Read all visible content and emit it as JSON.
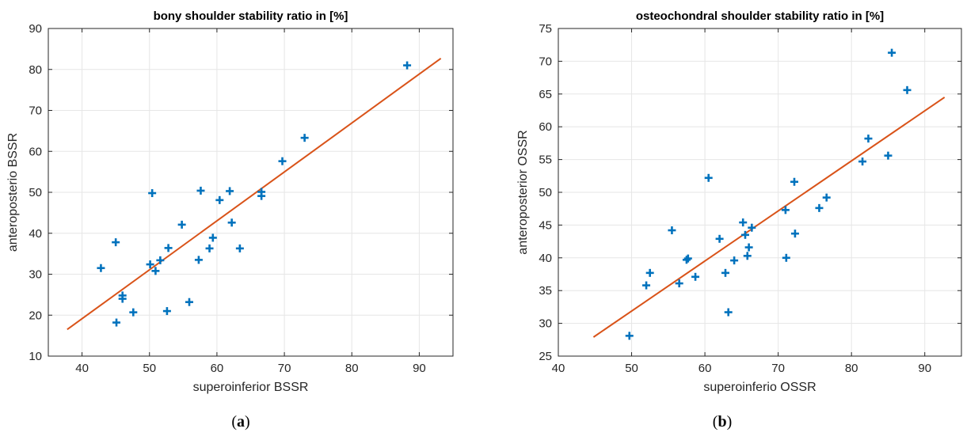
{
  "panels": [
    {
      "caption_prefix": "(",
      "caption_letter": "a",
      "caption_suffix": ")"
    },
    {
      "caption_prefix": "(",
      "caption_letter": "b",
      "caption_suffix": ")"
    }
  ],
  "colors": {
    "marker": "#0072BD",
    "fit_line": "#D95319",
    "grid": "#e6e6e6",
    "axis": "#262626"
  },
  "chart_data": [
    {
      "type": "scatter",
      "title": "bony shoulder stability ratio in [%]",
      "xlabel": "superoinferior BSSR",
      "ylabel": "anteroposterio BSSR",
      "xlim": [
        35,
        95
      ],
      "ylim": [
        10,
        90
      ],
      "xticks": [
        40,
        50,
        60,
        70,
        80,
        90
      ],
      "yticks": [
        10,
        20,
        30,
        40,
        50,
        60,
        70,
        80,
        90
      ],
      "grid": true,
      "marker": "+",
      "points": [
        [
          42.8,
          31.5
        ],
        [
          45.0,
          37.8
        ],
        [
          45.1,
          18.2
        ],
        [
          46.0,
          24.8
        ],
        [
          46.0,
          24.0
        ],
        [
          47.6,
          20.7
        ],
        [
          50.1,
          32.4
        ],
        [
          50.4,
          49.8
        ],
        [
          50.9,
          30.8
        ],
        [
          51.6,
          33.4
        ],
        [
          52.6,
          21.0
        ],
        [
          52.8,
          36.4
        ],
        [
          54.8,
          42.1
        ],
        [
          55.9,
          23.2
        ],
        [
          57.3,
          33.5
        ],
        [
          57.6,
          50.4
        ],
        [
          58.9,
          36.3
        ],
        [
          59.4,
          38.9
        ],
        [
          60.4,
          48.1
        ],
        [
          61.9,
          50.3
        ],
        [
          62.2,
          42.6
        ],
        [
          63.4,
          36.3
        ],
        [
          66.6,
          49.1
        ],
        [
          66.6,
          50.1
        ],
        [
          69.7,
          57.6
        ],
        [
          73.0,
          63.3
        ],
        [
          88.2,
          81.0
        ]
      ],
      "fit_line": {
        "x": [
          37.8,
          93.2
        ],
        "y": [
          16.5,
          82.7
        ]
      }
    },
    {
      "type": "scatter",
      "title": "osteochondral shoulder stability ratio in [%]",
      "xlabel": "superoinferio OSSR",
      "ylabel": "anteroposterior OSSR",
      "xlim": [
        40,
        95
      ],
      "ylim": [
        25,
        75
      ],
      "xticks": [
        40,
        50,
        60,
        70,
        80,
        90
      ],
      "yticks": [
        25,
        30,
        35,
        40,
        45,
        50,
        55,
        60,
        65,
        70,
        75
      ],
      "grid": true,
      "marker": "+",
      "points": [
        [
          49.7,
          28.1
        ],
        [
          52.0,
          35.8
        ],
        [
          52.5,
          37.7
        ],
        [
          55.5,
          44.2
        ],
        [
          56.5,
          36.1
        ],
        [
          57.5,
          39.7
        ],
        [
          57.7,
          39.9
        ],
        [
          58.7,
          37.1
        ],
        [
          60.5,
          52.2
        ],
        [
          62.0,
          42.9
        ],
        [
          62.8,
          37.7
        ],
        [
          63.2,
          31.7
        ],
        [
          64.0,
          39.6
        ],
        [
          65.2,
          45.4
        ],
        [
          65.5,
          43.5
        ],
        [
          65.8,
          40.3
        ],
        [
          66.0,
          41.6
        ],
        [
          66.4,
          44.6
        ],
        [
          71.0,
          47.3
        ],
        [
          71.1,
          40.0
        ],
        [
          72.2,
          51.6
        ],
        [
          72.3,
          43.7
        ],
        [
          75.6,
          47.6
        ],
        [
          76.6,
          49.2
        ],
        [
          81.5,
          54.7
        ],
        [
          82.3,
          58.2
        ],
        [
          85.0,
          55.6
        ],
        [
          85.5,
          71.3
        ],
        [
          87.6,
          65.6
        ]
      ],
      "fit_line": {
        "x": [
          44.8,
          92.7
        ],
        "y": [
          27.9,
          64.5
        ]
      }
    }
  ]
}
